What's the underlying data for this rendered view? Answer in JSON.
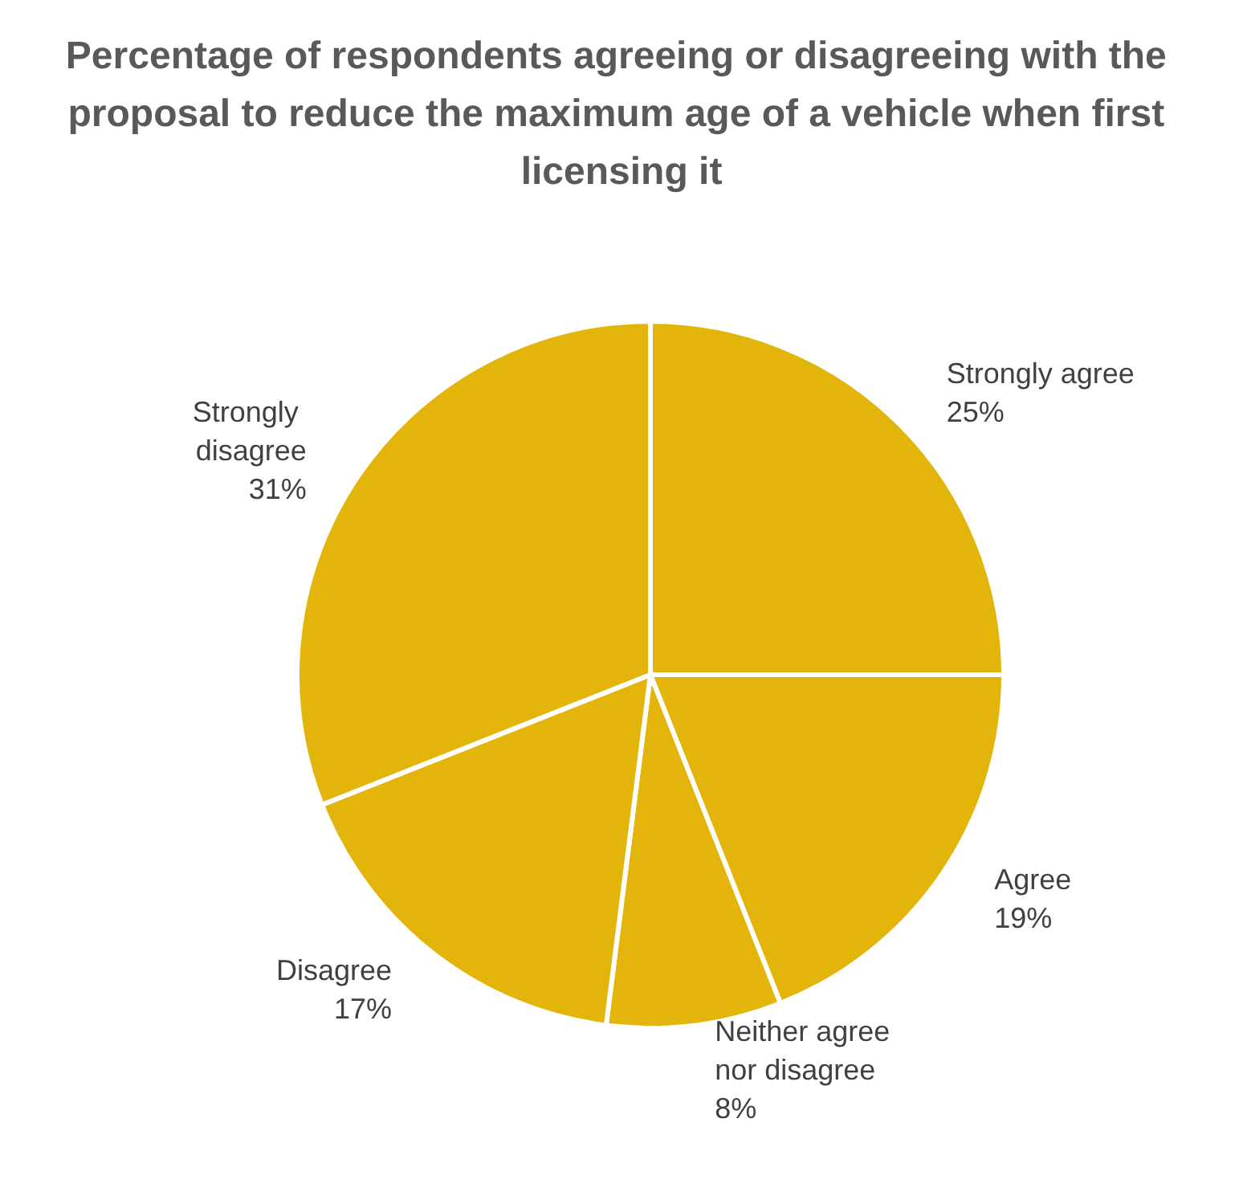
{
  "chart_data": {
    "type": "pie",
    "title": "Percentage of respondents agreeing or disagreeing with the proposal to reduce the maximum age of a vehicle when first licensing it",
    "categories": [
      "Strongly agree",
      "Agree",
      "Neither agree nor disagree",
      "Disagree",
      "Strongly disagree"
    ],
    "values": [
      25,
      19,
      8,
      17,
      31
    ],
    "colors": [
      "#e3b50b",
      "#e3b50b",
      "#e3b50b",
      "#e3b50b",
      "#e3b50b"
    ],
    "value_labels": [
      "25%",
      "19%",
      "8%",
      "17%",
      "31%"
    ],
    "legend": false
  }
}
